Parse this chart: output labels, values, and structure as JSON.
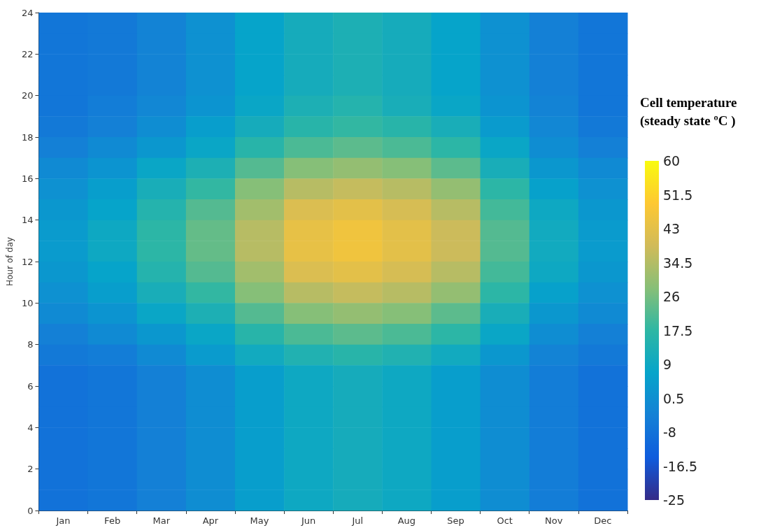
{
  "chart_data": {
    "type": "heatmap",
    "ylabel": "Hour of day",
    "clabel": "Cell temperature (steady state ºC )",
    "categories": [
      "Jan",
      "Feb",
      "Mar",
      "Apr",
      "May",
      "Jun",
      "Jul",
      "Aug",
      "Sep",
      "Oct",
      "Nov",
      "Dec"
    ],
    "ylim": [
      0,
      24
    ],
    "yticks": [
      0,
      2,
      4,
      6,
      8,
      10,
      12,
      14,
      16,
      18,
      20,
      22,
      24
    ],
    "clim": [
      -25,
      60
    ],
    "cticks": [
      -25,
      -16.5,
      -8,
      0.5,
      9,
      17.5,
      26,
      34.5,
      43,
      51.5,
      60
    ],
    "cells": [
      [
        -7,
        -6,
        -3,
        1,
        7,
        11,
        13,
        11,
        7,
        1,
        -4,
        -7
      ],
      [
        -7,
        -6,
        -3,
        1,
        7,
        11,
        13,
        11,
        7,
        1,
        -4,
        -7
      ],
      [
        -7,
        -6,
        -3,
        1,
        7,
        11,
        13,
        11,
        7,
        1,
        -4,
        -7
      ],
      [
        -7,
        -6,
        -3,
        1,
        7,
        11,
        13,
        11,
        7,
        1,
        -4,
        -7
      ],
      [
        -7,
        -5,
        -2,
        2,
        8,
        13,
        15,
        12,
        8,
        2,
        -3,
        -7
      ],
      [
        -6,
        -4,
        0,
        5,
        11,
        16,
        18,
        16,
        12,
        4,
        -2,
        -6
      ],
      [
        -4,
        -1,
        3,
        8,
        16,
        21,
        23,
        21,
        17,
        8,
        0,
        -4
      ],
      [
        -1,
        2,
        8,
        13,
        22,
        28,
        30,
        28,
        23,
        12,
        3,
        -1
      ],
      [
        1,
        5,
        12,
        18,
        28,
        35,
        37,
        35,
        30,
        17,
        6,
        1
      ],
      [
        3,
        7,
        15,
        22,
        32,
        41,
        43,
        40,
        35,
        20,
        9,
        3
      ],
      [
        4,
        9,
        17,
        24,
        35,
        44,
        46,
        43,
        38,
        22,
        10,
        4
      ],
      [
        4,
        9,
        17,
        24,
        35,
        44,
        46,
        43,
        38,
        22,
        10,
        4
      ],
      [
        3,
        7,
        15,
        22,
        32,
        41,
        43,
        40,
        35,
        20,
        9,
        3
      ],
      [
        1,
        5,
        12,
        18,
        28,
        35,
        37,
        35,
        30,
        17,
        6,
        1
      ],
      [
        -1,
        2,
        8,
        13,
        22,
        28,
        30,
        28,
        23,
        12,
        3,
        -1
      ],
      [
        -4,
        -1,
        3,
        8,
        16,
        21,
        23,
        21,
        17,
        8,
        0,
        -4
      ],
      [
        -6,
        -5,
        -1,
        4,
        10,
        14,
        16,
        14,
        10,
        3,
        -3,
        -6
      ],
      [
        -8,
        -7,
        -4,
        0,
        5,
        9,
        11,
        9,
        5,
        0,
        -5,
        -8
      ],
      [
        -8,
        -7,
        -4,
        0,
        5,
        9,
        11,
        9,
        5,
        0,
        -5,
        -8
      ],
      [
        -8,
        -7,
        -4,
        0,
        5,
        9,
        11,
        9,
        5,
        0,
        -5,
        -8
      ],
      [
        -8,
        -7,
        -4,
        0,
        5,
        9,
        11,
        9,
        5,
        0,
        -5,
        -8
      ],
      [
        -8,
        -7,
        -4,
        0,
        5,
        9,
        11,
        9,
        5,
        0,
        -5,
        -8
      ],
      [
        -8,
        -7,
        -4,
        0,
        5,
        9,
        11,
        9,
        5,
        0,
        -5,
        -8
      ],
      [
        -8,
        -7,
        -4,
        0,
        5,
        9,
        11,
        9,
        5,
        0,
        -5,
        -8
      ]
    ]
  }
}
